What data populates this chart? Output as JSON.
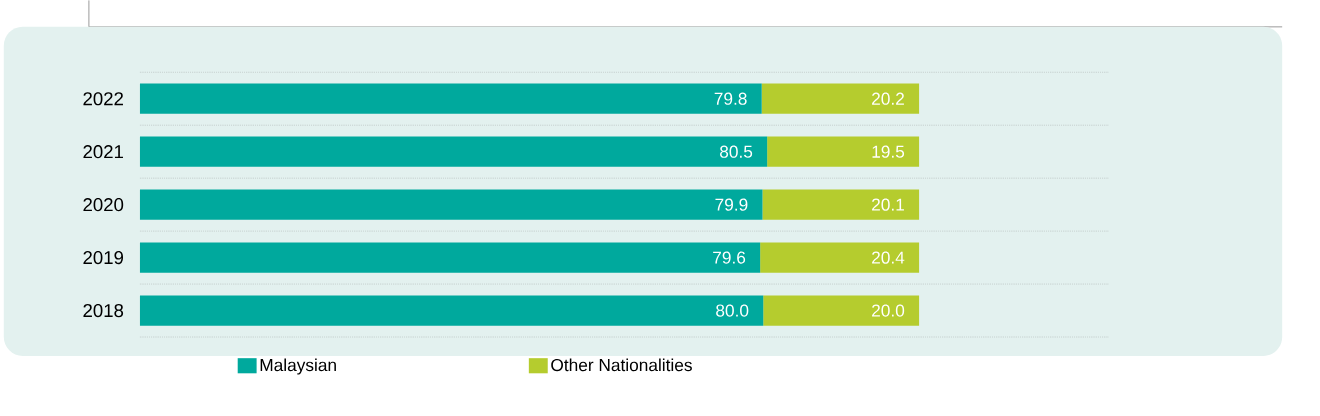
{
  "chart_data": {
    "type": "bar",
    "orientation": "horizontal",
    "stacked": true,
    "categories": [
      "2022",
      "2021",
      "2020",
      "2019",
      "2018"
    ],
    "series": [
      {
        "name": "Malaysian",
        "color": "#00a99d",
        "values": [
          79.8,
          80.5,
          79.9,
          79.6,
          80.0
        ],
        "value_labels": [
          "79.8",
          "80.5",
          "79.9",
          "79.6",
          "80.0"
        ]
      },
      {
        "name": "Other Nationalities",
        "color": "#b5cc2e",
        "values": [
          20.2,
          19.5,
          20.1,
          20.4,
          20.0
        ],
        "value_labels": [
          "20.2",
          "19.5",
          "20.1",
          "20.4",
          "20.0"
        ]
      }
    ],
    "tick_labels": "y",
    "legend": "bottom"
  }
}
